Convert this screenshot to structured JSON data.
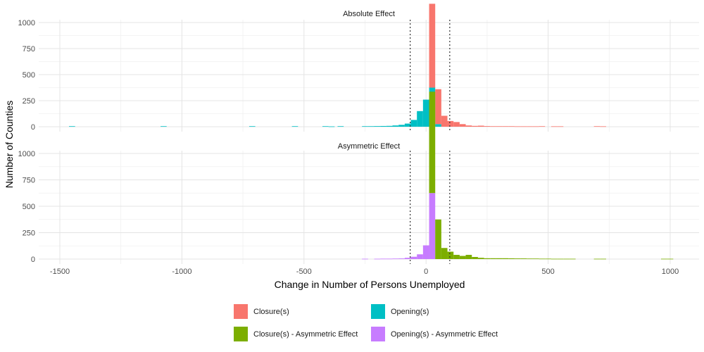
{
  "chart_data": {
    "type": "bar",
    "xlabel": "Change in Number of Persons Unemployed",
    "ylabel": "Number of Counties",
    "xlim": [
      -1580,
      1110
    ],
    "ylim": [
      0,
      1000
    ],
    "x_ticks": [
      -1500,
      -1000,
      -500,
      0,
      500,
      1000
    ],
    "x_tick_labels": [
      "-1500",
      "-1000",
      "-500",
      "0",
      "500",
      "1000"
    ],
    "y_ticks": [
      0,
      250,
      500,
      750,
      1000
    ],
    "y_tick_labels": [
      "0",
      "250",
      "500",
      "750",
      "1000"
    ],
    "grid": true,
    "reference_lines": [
      -65,
      97
    ],
    "bin_width": 25,
    "legend": {
      "placement": "bottom",
      "entries": [
        {
          "label": "Closure(s)",
          "color": "#F8766D"
        },
        {
          "label": "Opening(s)",
          "color": "#00BFC4"
        },
        {
          "label": "Closure(s) - Asymmetric Effect",
          "color": "#7CAE00"
        },
        {
          "label": "Opening(s) - Asymmetric Effect",
          "color": "#C77CFF"
        }
      ]
    },
    "panels": [
      {
        "title": "Absolute Effect",
        "series": [
          {
            "name": "Opening(s)",
            "color": "#00BFC4",
            "bins": [
              [
                -1450,
                5
              ],
              [
                -1075,
                5
              ],
              [
                -712,
                5
              ],
              [
                -537,
                5
              ],
              [
                -412,
                5
              ],
              [
                -387,
                3
              ],
              [
                -350,
                5
              ],
              [
                -250,
                5
              ],
              [
                -225,
                5
              ],
              [
                -200,
                6
              ],
              [
                -175,
                7
              ],
              [
                -150,
                8
              ],
              [
                -125,
                12
              ],
              [
                -100,
                18
              ],
              [
                -75,
                30
              ],
              [
                -50,
                65
              ],
              [
                -25,
                150
              ],
              [
                0,
                260
              ],
              [
                25,
                375
              ],
              [
                50,
                25
              ]
            ]
          },
          {
            "name": "Closure(s)",
            "color": "#F8766D",
            "bins": [
              [
                25,
                805
              ],
              [
                50,
                335
              ],
              [
                75,
                105
              ],
              [
                100,
                55
              ],
              [
                125,
                45
              ],
              [
                150,
                25
              ],
              [
                175,
                12
              ],
              [
                200,
                8
              ],
              [
                225,
                10
              ],
              [
                250,
                6
              ],
              [
                275,
                5
              ],
              [
                300,
                5
              ],
              [
                325,
                5
              ],
              [
                350,
                5
              ],
              [
                375,
                4
              ],
              [
                400,
                4
              ],
              [
                425,
                4
              ],
              [
                450,
                4
              ],
              [
                475,
                5
              ],
              [
                525,
                4
              ],
              [
                550,
                4
              ],
              [
                700,
                5
              ],
              [
                725,
                4
              ]
            ]
          }
        ]
      },
      {
        "title": "Asymmetric Effect",
        "series": [
          {
            "name": "Opening(s) - Asymmetric Effect",
            "color": "#C77CFF",
            "bins": [
              [
                -250,
                3
              ],
              [
                -200,
                3
              ],
              [
                -175,
                4
              ],
              [
                -150,
                4
              ],
              [
                -125,
                5
              ],
              [
                -100,
                6
              ],
              [
                -75,
                12
              ],
              [
                -50,
                22
              ],
              [
                -25,
                45
              ],
              [
                0,
                130
              ],
              [
                25,
                625
              ]
            ]
          },
          {
            "name": "Closure(s) - Asymmetric Effect",
            "color": "#7CAE00",
            "bins": [
              [
                25,
                960
              ],
              [
                50,
                375
              ],
              [
                75,
                105
              ],
              [
                100,
                70
              ],
              [
                125,
                40
              ],
              [
                150,
                30
              ],
              [
                175,
                40
              ],
              [
                200,
                20
              ],
              [
                225,
                12
              ],
              [
                250,
                8
              ],
              [
                275,
                8
              ],
              [
                300,
                8
              ],
              [
                325,
                8
              ],
              [
                350,
                7
              ],
              [
                375,
                6
              ],
              [
                400,
                6
              ],
              [
                425,
                5
              ],
              [
                450,
                5
              ],
              [
                475,
                4
              ],
              [
                500,
                4
              ],
              [
                525,
                3
              ],
              [
                550,
                3
              ],
              [
                575,
                3
              ],
              [
                600,
                3
              ],
              [
                700,
                3
              ],
              [
                725,
                3
              ],
              [
                975,
                3
              ],
              [
                1000,
                3
              ]
            ]
          }
        ]
      }
    ]
  }
}
